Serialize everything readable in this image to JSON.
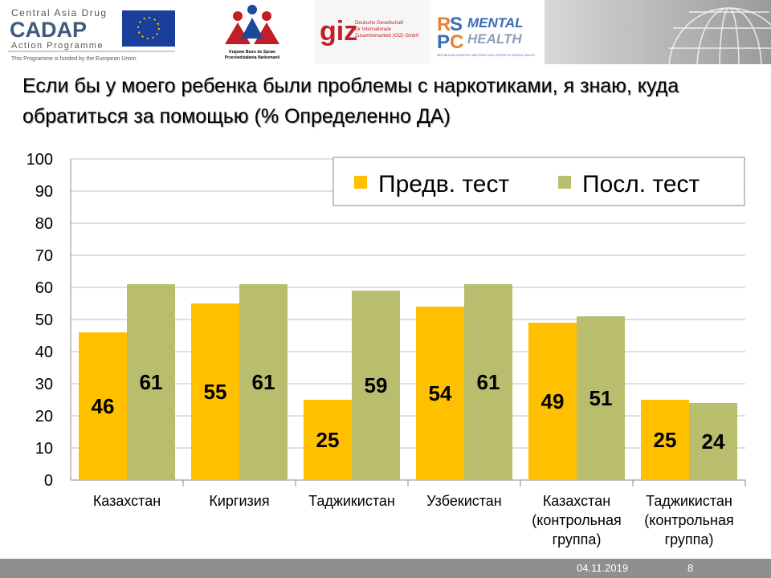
{
  "header": {
    "logos": [
      {
        "name": "CADAP",
        "lines": [
          "Central Asia Drug",
          "CADAP",
          "Action Programme",
          "This Programme is funded by the European Union"
        ]
      },
      {
        "name": "Krajowe Biuro",
        "lines": [
          "Krajowe Biuro do Spraw",
          "Przeciwdziałania Narkomanii"
        ]
      },
      {
        "name": "giz",
        "lines": [
          "giz",
          "Deutsche Gesellschaft",
          "für Internationale",
          "Zusammenarbeit (GIZ) GmbH"
        ]
      },
      {
        "name": "RSPC Mental Health",
        "lines": [
          "MENTAL",
          "HEALTH",
          "REPUBLICAN SCIENTIFIC AND PRACTICAL CENTER OF MENTAL HEALTH"
        ]
      }
    ]
  },
  "title": "Если бы у моего ребенка были проблемы с наркотиками, я знаю, куда обратиться за помощью (% Определенно ДА)",
  "footer": {
    "date": "04.11.2019",
    "page": "8"
  },
  "colors": {
    "pre": "#FFC000",
    "post": "#B9BD6E"
  },
  "chart_data": {
    "type": "bar",
    "categories": [
      [
        "Казахстан"
      ],
      [
        "Киргизия"
      ],
      [
        "Таджикистан"
      ],
      [
        "Узбекистан"
      ],
      [
        "Казахстан",
        "(контрольная",
        "группа)"
      ],
      [
        "Таджикистан",
        "(контрольная",
        "группа)"
      ]
    ],
    "series": [
      {
        "name": "Предв. тест",
        "values": [
          46,
          55,
          25,
          54,
          49,
          25
        ]
      },
      {
        "name": "Посл. тест",
        "values": [
          61,
          61,
          59,
          61,
          51,
          24
        ]
      }
    ],
    "yticks": [
      0,
      10,
      20,
      30,
      40,
      50,
      60,
      70,
      80,
      90,
      100
    ],
    "ylim": [
      0,
      100
    ],
    "legend": "top-right",
    "grid": true
  }
}
